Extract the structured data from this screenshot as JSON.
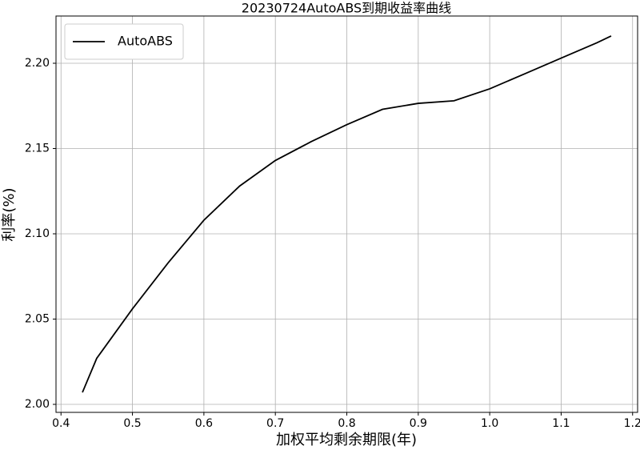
{
  "chart_data": {
    "type": "line",
    "title": "20230724AutoABS到期收益率曲线",
    "x_label": "加权平均剩余期限(年)",
    "y_label": "利率(%)",
    "x": [
      0.43,
      0.45,
      0.5,
      0.55,
      0.6,
      0.65,
      0.7,
      0.75,
      0.8,
      0.85,
      0.9,
      0.95,
      1.0,
      1.05,
      1.1,
      1.15,
      1.17
    ],
    "series": [
      {
        "name": "AutoABS",
        "color": "#000000",
        "values": [
          2.007,
          2.027,
          2.056,
          2.083,
          2.108,
          2.128,
          2.143,
          2.154,
          2.164,
          2.173,
          2.1765,
          2.178,
          2.185,
          2.194,
          2.203,
          2.212,
          2.216
        ]
      }
    ],
    "xlim": [
      0.393,
      1.207
    ],
    "ylim": [
      1.9953,
      2.2277
    ],
    "xticks": [
      0.4,
      0.5,
      0.6,
      0.7,
      0.8,
      0.9,
      {
        "value": 1,
        "label": "1.0"
      },
      1.1,
      1.2
    ],
    "yticks": [
      {
        "value": 2,
        "label": "2.00"
      },
      2.05,
      {
        "value": 2.1,
        "label": "2.10"
      },
      2.15,
      {
        "value": 2.2,
        "label": "2.20"
      }
    ],
    "grid": true,
    "legend": "upper left"
  }
}
